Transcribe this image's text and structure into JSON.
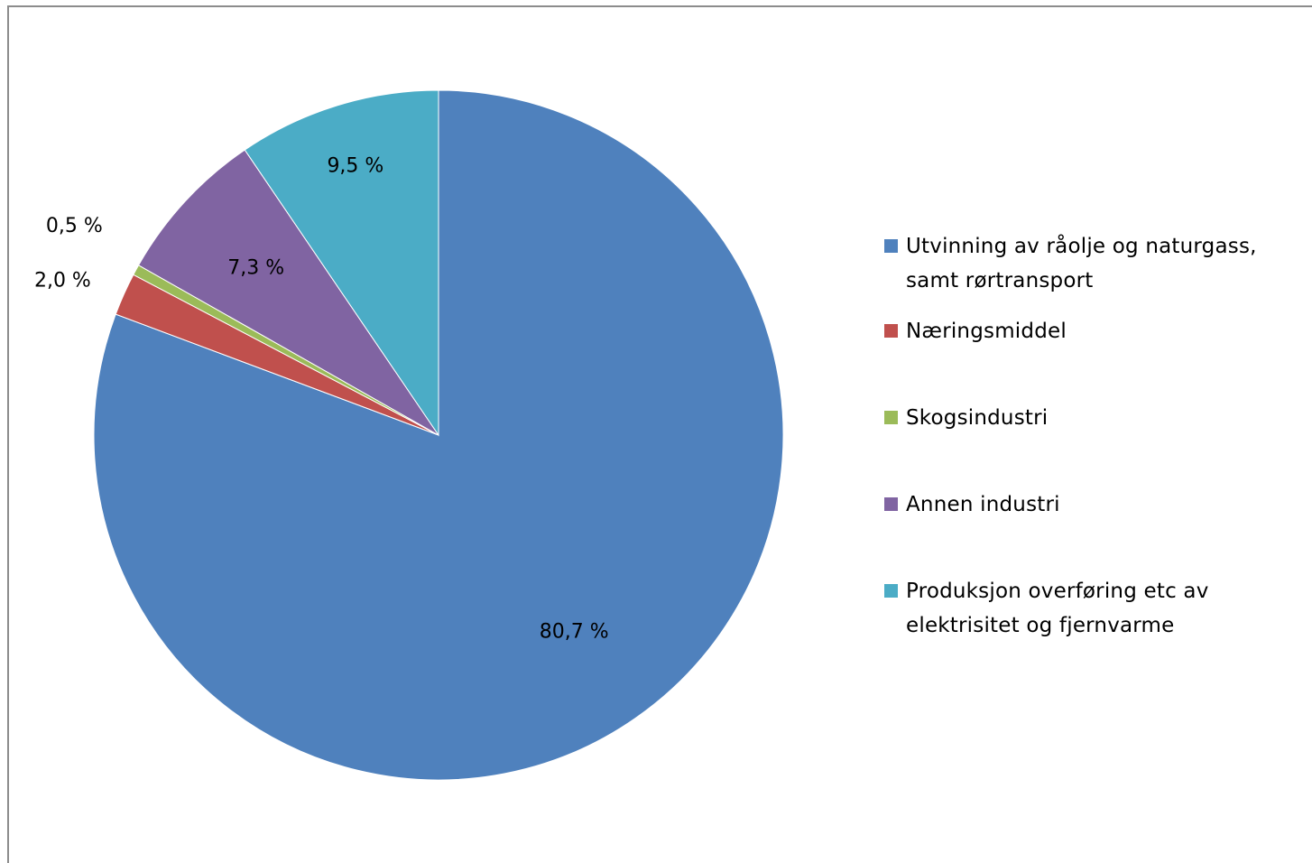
{
  "chart_data": {
    "type": "pie",
    "start_angle_deg": 0,
    "direction": "clockwise",
    "legend_position": "right",
    "slices": [
      {
        "label": "Utvinning av råolje og naturgass, samt rørtransport",
        "value": 80.7,
        "display": "80,7 %",
        "color": "#4f81bd"
      },
      {
        "label": "Næringsmiddel",
        "value": 2.0,
        "display": "2,0 %",
        "color": "#c0504d"
      },
      {
        "label": "Skogsindustri",
        "value": 0.5,
        "display": "0,5 %",
        "color": "#9bbb59"
      },
      {
        "label": "Annen industri",
        "value": 7.3,
        "display": "7,3 %",
        "color": "#8064a2"
      },
      {
        "label": "Produksjon overføring etc av elektrisitet og fjernvarme",
        "value": 9.5,
        "display": "9,5 %",
        "color": "#4bacc6"
      }
    ],
    "legend": [
      {
        "lines": [
          "Utvinning av råolje og naturgass,",
          "samt rørtransport"
        ],
        "color": "#4f81bd"
      },
      {
        "lines": [
          "Næringsmiddel"
        ],
        "color": "#c0504d"
      },
      {
        "lines": [
          "Skogsindustri"
        ],
        "color": "#9bbb59"
      },
      {
        "lines": [
          "Annen industri"
        ],
        "color": "#8064a2"
      },
      {
        "lines": [
          "Produksjon overføring etc av",
          "elektrisitet og fjernvarme"
        ],
        "color": "#4bacc6"
      }
    ]
  }
}
